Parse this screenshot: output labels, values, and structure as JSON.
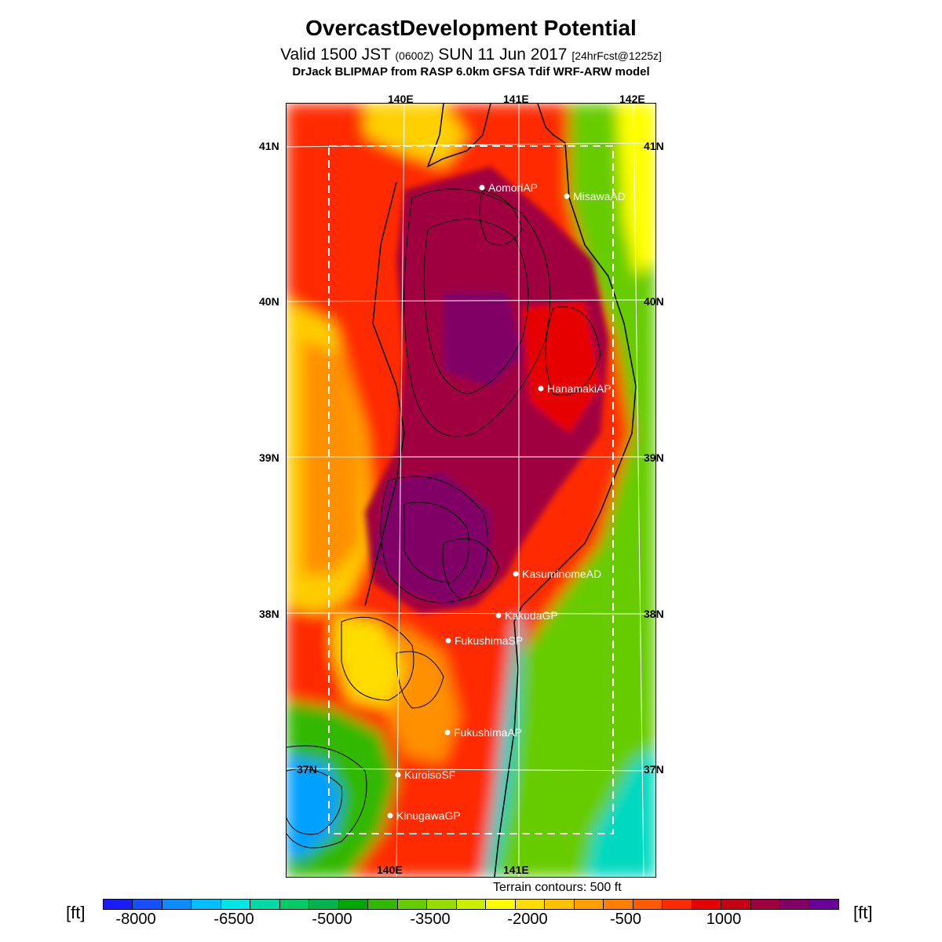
{
  "header": {
    "title": "OvercastDevelopment Potential",
    "valid_a": "Valid 1500 JST",
    "valid_zulu": "(0600Z)",
    "valid_b": "SUN 11 Jun 2017",
    "forecast": "[24hrFcst@1225z]",
    "model": "DrJack BLIPMAP from RASP 6.0km GFSA Tdif WRF-ARW model"
  },
  "axes": {
    "top_lon": [
      "140E",
      "141E",
      "142E"
    ],
    "bottom_lon": [
      "140E",
      "141E"
    ],
    "left_lat": [
      "41N",
      "40N",
      "39N",
      "38N",
      "37N"
    ],
    "right_lat": [
      "41N",
      "40N",
      "39N",
      "38N",
      "37N"
    ]
  },
  "stations": [
    {
      "name": "AomoriAP"
    },
    {
      "name": "MisawaAD"
    },
    {
      "name": "HanamakiAP"
    },
    {
      "name": "KasuminomeAD"
    },
    {
      "name": "KakudaGP"
    },
    {
      "name": "FukushimaSP"
    },
    {
      "name": "FukushimaAP"
    },
    {
      "name": "KuroisoSF"
    },
    {
      "name": "KinugawaGP"
    }
  ],
  "footer": {
    "terrain_note": "Terrain contours: 500 ft",
    "unit_left": "[ft]",
    "unit_right": "[ft]"
  },
  "colorbar": {
    "labels": [
      "-8000",
      "-6500",
      "-5000",
      "-3500",
      "-2000",
      "-500",
      "1000"
    ],
    "colors": [
      "#1a1aff",
      "#1450ff",
      "#0a8cff",
      "#00bfff",
      "#00e5e5",
      "#00d9a8",
      "#00cc66",
      "#00b34d",
      "#00a600",
      "#33b800",
      "#66cc00",
      "#99dd00",
      "#ccee00",
      "#ffff00",
      "#ffdd00",
      "#ffc000",
      "#ffa000",
      "#ff8000",
      "#ff5a00",
      "#ff2a00",
      "#e60000",
      "#c80014",
      "#a00040",
      "#800066",
      "#6a0099"
    ]
  }
}
